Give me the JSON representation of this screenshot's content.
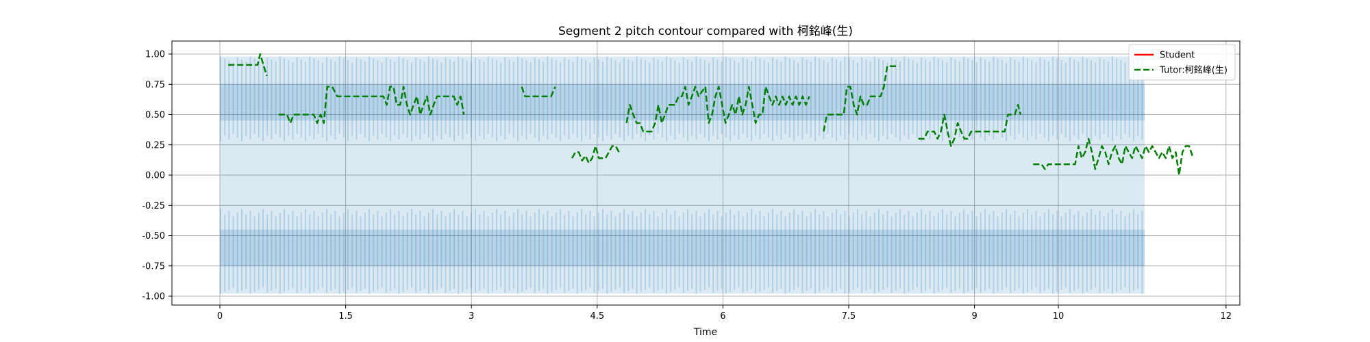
{
  "chart_data": {
    "type": "line",
    "title": "Segment 2 pitch contour compared with 柯銘峰(生)",
    "xlabel": "Time",
    "ylabel": "",
    "xlim": [
      -0.57,
      12.17
    ],
    "ylim": [
      -1.1,
      1.1
    ],
    "x_ticks": [
      0,
      1.5,
      3,
      4.5,
      6,
      7.5,
      9,
      10,
      12
    ],
    "x_tick_labels": [
      "0",
      "1.5",
      "3",
      "4.5",
      "6",
      "7.5",
      "9",
      "10",
      "12"
    ],
    "y_ticks": [
      1.0,
      0.75,
      0.5,
      0.25,
      0.0,
      -0.25,
      -0.5,
      -0.75,
      -1.0
    ],
    "y_tick_labels": [
      "1.00",
      "0.75",
      "0.50",
      "0.25",
      "0.00",
      "-0.25",
      "-0.50",
      "-0.75",
      "-1.00"
    ],
    "grid": true,
    "legend_position": "top-right",
    "waveform": {
      "x_range": [
        0,
        11.03
      ],
      "amplitude_max": 0.98,
      "outer_band": [
        0.28,
        0.98
      ],
      "inner_band": [
        0.45,
        0.75
      ],
      "color": "#1f77b4"
    },
    "series": [
      {
        "name": "Student",
        "color": "#ff0000",
        "style": "solid",
        "points": []
      },
      {
        "name": "Tutor:柯銘峰(生)",
        "color": "#008000",
        "style": "dashed",
        "segments": [
          [
            [
              0.1,
              0.91
            ],
            [
              0.45,
              0.91
            ],
            [
              0.48,
              1.0
            ],
            [
              0.52,
              0.91
            ],
            [
              0.56,
              0.82
            ]
          ],
          [
            [
              0.7,
              0.5
            ],
            [
              0.8,
              0.5
            ],
            [
              0.84,
              0.43
            ],
            [
              0.88,
              0.5
            ],
            [
              1.12,
              0.5
            ],
            [
              1.16,
              0.43
            ],
            [
              1.2,
              0.5
            ],
            [
              1.24,
              0.43
            ],
            [
              1.28,
              0.73
            ],
            [
              1.34,
              0.73
            ],
            [
              1.4,
              0.65
            ],
            [
              1.95,
              0.65
            ],
            [
              1.99,
              0.58
            ],
            [
              2.03,
              0.73
            ],
            [
              2.07,
              0.73
            ],
            [
              2.11,
              0.58
            ],
            [
              2.15,
              0.58
            ],
            [
              2.19,
              0.73
            ],
            [
              2.23,
              0.58
            ],
            [
              2.27,
              0.5
            ],
            [
              2.31,
              0.58
            ],
            [
              2.35,
              0.65
            ],
            [
              2.39,
              0.5
            ],
            [
              2.43,
              0.58
            ],
            [
              2.47,
              0.65
            ],
            [
              2.51,
              0.5
            ],
            [
              2.55,
              0.58
            ],
            [
              2.59,
              0.65
            ],
            [
              2.79,
              0.65
            ],
            [
              2.83,
              0.58
            ],
            [
              2.87,
              0.65
            ],
            [
              2.91,
              0.5
            ]
          ],
          [
            [
              3.6,
              0.73
            ],
            [
              3.64,
              0.65
            ],
            [
              3.95,
              0.65
            ],
            [
              4.0,
              0.73
            ]
          ],
          [
            [
              4.2,
              0.14
            ],
            [
              4.24,
              0.19
            ],
            [
              4.28,
              0.19
            ],
            [
              4.32,
              0.12
            ],
            [
              4.36,
              0.16
            ],
            [
              4.4,
              0.1
            ],
            [
              4.44,
              0.14
            ],
            [
              4.48,
              0.24
            ],
            [
              4.52,
              0.14
            ],
            [
              4.6,
              0.14
            ],
            [
              4.64,
              0.19
            ],
            [
              4.68,
              0.24
            ],
            [
              4.72,
              0.24
            ],
            [
              4.76,
              0.19
            ]
          ],
          [
            [
              4.85,
              0.43
            ],
            [
              4.89,
              0.58
            ],
            [
              4.93,
              0.5
            ],
            [
              4.97,
              0.43
            ],
            [
              5.01,
              0.43
            ],
            [
              5.05,
              0.36
            ],
            [
              5.15,
              0.36
            ],
            [
              5.19,
              0.43
            ],
            [
              5.23,
              0.58
            ],
            [
              5.27,
              0.43
            ],
            [
              5.31,
              0.5
            ],
            [
              5.35,
              0.58
            ],
            [
              5.43,
              0.58
            ],
            [
              5.47,
              0.65
            ],
            [
              5.51,
              0.65
            ],
            [
              5.55,
              0.73
            ],
            [
              5.59,
              0.58
            ],
            [
              5.63,
              0.65
            ],
            [
              5.67,
              0.73
            ],
            [
              5.71,
              0.65
            ],
            [
              5.79,
              0.73
            ],
            [
              5.83,
              0.43
            ],
            [
              5.87,
              0.5
            ],
            [
              5.91,
              0.65
            ],
            [
              5.95,
              0.73
            ],
            [
              5.99,
              0.58
            ],
            [
              6.03,
              0.43
            ],
            [
              6.07,
              0.5
            ],
            [
              6.11,
              0.58
            ],
            [
              6.15,
              0.5
            ],
            [
              6.19,
              0.65
            ],
            [
              6.23,
              0.5
            ],
            [
              6.27,
              0.58
            ],
            [
              6.31,
              0.73
            ],
            [
              6.35,
              0.58
            ],
            [
              6.39,
              0.43
            ],
            [
              6.43,
              0.5
            ],
            [
              6.47,
              0.5
            ],
            [
              6.51,
              0.73
            ],
            [
              6.55,
              0.65
            ],
            [
              6.59,
              0.58
            ],
            [
              6.63,
              0.65
            ],
            [
              6.67,
              0.58
            ],
            [
              6.71,
              0.65
            ],
            [
              6.75,
              0.58
            ],
            [
              6.79,
              0.65
            ],
            [
              6.83,
              0.58
            ],
            [
              6.87,
              0.65
            ],
            [
              6.91,
              0.58
            ],
            [
              6.95,
              0.65
            ],
            [
              6.99,
              0.58
            ],
            [
              7.03,
              0.65
            ]
          ],
          [
            [
              7.2,
              0.36
            ],
            [
              7.24,
              0.5
            ],
            [
              7.3,
              0.5
            ],
            [
              7.34,
              0.5
            ],
            [
              7.44,
              0.5
            ],
            [
              7.48,
              0.73
            ],
            [
              7.52,
              0.73
            ],
            [
              7.56,
              0.58
            ],
            [
              7.6,
              0.5
            ],
            [
              7.64,
              0.65
            ],
            [
              7.68,
              0.58
            ],
            [
              7.72,
              0.58
            ],
            [
              7.76,
              0.65
            ],
            [
              7.88,
              0.65
            ],
            [
              7.92,
              0.73
            ],
            [
              7.96,
              0.9
            ],
            [
              8.04,
              0.9
            ],
            [
              8.1,
              0.9
            ]
          ],
          [
            [
              8.33,
              0.3
            ],
            [
              8.4,
              0.3
            ],
            [
              8.44,
              0.36
            ],
            [
              8.52,
              0.36
            ],
            [
              8.56,
              0.3
            ],
            [
              8.6,
              0.36
            ],
            [
              8.64,
              0.5
            ],
            [
              8.68,
              0.36
            ],
            [
              8.72,
              0.24
            ],
            [
              8.76,
              0.3
            ],
            [
              8.8,
              0.43
            ],
            [
              8.84,
              0.36
            ],
            [
              8.88,
              0.3
            ],
            [
              8.92,
              0.3
            ],
            [
              8.96,
              0.36
            ],
            [
              9.36,
              0.36
            ],
            [
              9.4,
              0.5
            ],
            [
              9.48,
              0.5
            ],
            [
              9.52,
              0.58
            ],
            [
              9.55,
              0.5
            ]
          ],
          [
            [
              9.7,
              0.09
            ],
            [
              9.8,
              0.09
            ],
            [
              9.84,
              0.05
            ],
            [
              9.88,
              0.09
            ],
            [
              10.2,
              0.09
            ],
            [
              10.24,
              0.24
            ],
            [
              10.28,
              0.14
            ],
            [
              10.32,
              0.19
            ],
            [
              10.36,
              0.3
            ],
            [
              10.4,
              0.19
            ],
            [
              10.44,
              0.05
            ],
            [
              10.48,
              0.14
            ],
            [
              10.52,
              0.24
            ],
            [
              10.56,
              0.19
            ],
            [
              10.6,
              0.09
            ],
            [
              10.64,
              0.19
            ],
            [
              10.68,
              0.24
            ],
            [
              10.72,
              0.14
            ],
            [
              10.76,
              0.09
            ],
            [
              10.8,
              0.24
            ],
            [
              10.84,
              0.19
            ],
            [
              10.88,
              0.14
            ],
            [
              10.92,
              0.24
            ],
            [
              10.96,
              0.19
            ],
            [
              11.0,
              0.14
            ],
            [
              11.04,
              0.24
            ],
            [
              11.08,
              0.19
            ],
            [
              11.12,
              0.24
            ],
            [
              11.16,
              0.19
            ],
            [
              11.2,
              0.14
            ],
            [
              11.24,
              0.19
            ],
            [
              11.28,
              0.14
            ],
            [
              11.32,
              0.24
            ],
            [
              11.36,
              0.14
            ],
            [
              11.4,
              0.19
            ],
            [
              11.44,
              0.0
            ],
            [
              11.48,
              0.19
            ],
            [
              11.52,
              0.24
            ],
            [
              11.56,
              0.24
            ],
            [
              11.6,
              0.16
            ]
          ]
        ]
      }
    ]
  }
}
